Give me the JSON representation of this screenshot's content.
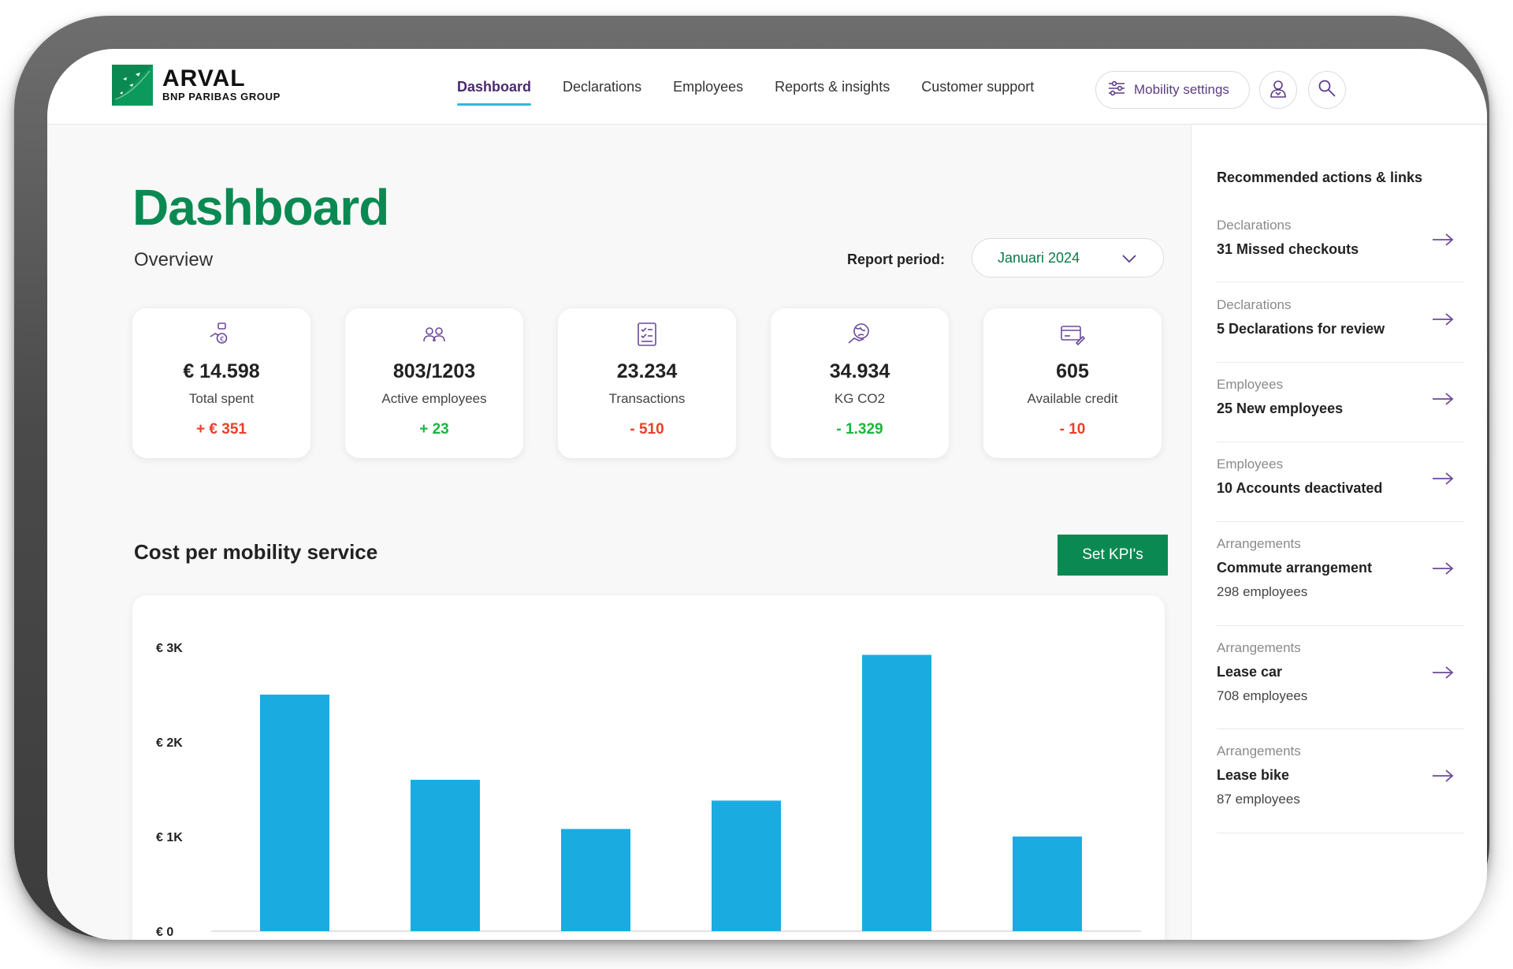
{
  "brand": {
    "name": "ARVAL",
    "group": "BNP PARIBAS GROUP"
  },
  "colors": {
    "brand_green": "#0a8a52",
    "accent_purple": "#5b3b86",
    "bar_blue": "#1aace0",
    "delta_red": "#e8402a",
    "delta_green": "#18b83c"
  },
  "nav": {
    "items": [
      {
        "label": "Dashboard",
        "active": true
      },
      {
        "label": "Declarations",
        "active": false
      },
      {
        "label": "Employees",
        "active": false
      },
      {
        "label": "Reports & insights",
        "active": false
      },
      {
        "label": "Customer support",
        "active": false
      }
    ],
    "mobility_settings": "Mobility settings"
  },
  "header": {
    "title": "Dashboard",
    "subtitle": "Overview"
  },
  "report_period": {
    "label": "Report period:",
    "value": "Januari 2024"
  },
  "kpis": [
    {
      "value": "€ 14.598",
      "label": "Total spent",
      "delta": "+ € 351",
      "trend": "red",
      "icon": "money-hand-icon"
    },
    {
      "value": "803/1203",
      "label": "Active employees",
      "delta": "+ 23",
      "trend": "green",
      "icon": "users-icon"
    },
    {
      "value": "23.234",
      "label": "Transactions",
      "delta": "- 510",
      "trend": "red",
      "icon": "checklist-icon"
    },
    {
      "value": "34.934",
      "label": "KG CO2",
      "delta": "- 1.329",
      "trend": "green",
      "icon": "globe-hand-icon"
    },
    {
      "value": "605",
      "label": "Available credit",
      "delta": "- 10",
      "trend": "red",
      "icon": "credit-card-icon"
    }
  ],
  "cost_section": {
    "title": "Cost per mobility service",
    "button": "Set KPI's"
  },
  "chart_data": {
    "type": "bar",
    "title": "Cost per mobility service",
    "categories": [
      "",
      "",
      "",
      "",
      "",
      ""
    ],
    "values": [
      2500,
      1600,
      1080,
      1380,
      2920,
      1000
    ],
    "ylim": [
      0,
      3000
    ],
    "yticks": [
      {
        "value": 3000,
        "label": "€ 3K"
      },
      {
        "value": 2000,
        "label": "€ 2K"
      },
      {
        "value": 1000,
        "label": "€ 1K"
      },
      {
        "value": 0,
        "label": "€ 0"
      }
    ],
    "xlabel": "",
    "ylabel": ""
  },
  "sidebar": {
    "title": "Recommended actions & links",
    "items": [
      {
        "category": "Declarations",
        "title": "31 Missed checkouts",
        "count": ""
      },
      {
        "category": "Declarations",
        "title": "5 Declarations for review",
        "count": ""
      },
      {
        "category": "Employees",
        "title": "25 New employees",
        "count": ""
      },
      {
        "category": "Employees",
        "title": "10 Accounts deactivated",
        "count": ""
      },
      {
        "category": "Arrangements",
        "title": "Commute arrangement",
        "count": "298 employees"
      },
      {
        "category": "Arrangements",
        "title": "Lease car",
        "count": "708 employees"
      },
      {
        "category": "Arrangements",
        "title": "Lease bike",
        "count": "87 employees"
      }
    ]
  }
}
